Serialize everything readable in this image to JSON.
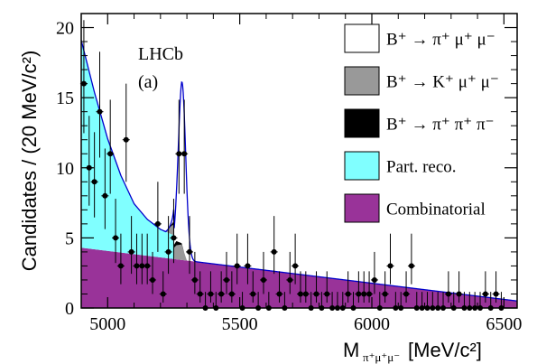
{
  "chart_data": {
    "type": "scatter",
    "ylabel": "Candidates / (20 MeV/c²)",
    "xlabel": "M",
    "xlabel_sub": "π⁺μ⁺μ⁻",
    "xlabel_unit": "[MeV/c²]",
    "annotation_experiment": "LHCb",
    "annotation_panel": "(a)",
    "xlim": [
      4900,
      6550
    ],
    "ylim": [
      0,
      21
    ],
    "x_ticks": [
      5000,
      5500,
      6000,
      6500
    ],
    "y_ticks": [
      0,
      5,
      10,
      15,
      20
    ],
    "legend_position": "top-right",
    "colors": {
      "signal": "#ffffff",
      "b_kmumu": "#999999",
      "b_pipipi": "#000000",
      "part_reco": "#80ffff",
      "combinatorial": "#993399",
      "fit": "#0000cc",
      "points": "#000000"
    },
    "legend": [
      {
        "key": "signal",
        "label": "B⁺ → π⁺ μ⁺ μ⁻"
      },
      {
        "key": "b_kmumu",
        "label": "B⁺ → K⁺ μ⁺ μ⁻"
      },
      {
        "key": "b_pipipi",
        "label": "B⁺ → π⁺ π⁺ π⁻"
      },
      {
        "key": "part_reco",
        "label": "Part. reco."
      },
      {
        "key": "combinatorial",
        "label": "Combinatorial"
      }
    ],
    "data_points": {
      "x": [
        4910,
        4930,
        4950,
        4970,
        4990,
        5010,
        5030,
        5050,
        5070,
        5090,
        5110,
        5130,
        5150,
        5170,
        5190,
        5210,
        5230,
        5250,
        5270,
        5290,
        5310,
        5330,
        5350,
        5370,
        5390,
        5410,
        5430,
        5450,
        5470,
        5490,
        5510,
        5530,
        5550,
        5570,
        5590,
        5610,
        5630,
        5650,
        5670,
        5690,
        5710,
        5730,
        5750,
        5770,
        5790,
        5810,
        5830,
        5850,
        5870,
        5890,
        5910,
        5930,
        5950,
        5970,
        5990,
        6010,
        6030,
        6050,
        6070,
        6090,
        6110,
        6130,
        6150,
        6170,
        6190,
        6210,
        6230,
        6250,
        6270,
        6290,
        6310,
        6330,
        6350,
        6370,
        6390,
        6410,
        6430,
        6450,
        6470,
        6490
      ],
      "y": [
        16,
        10,
        9,
        14,
        8,
        11,
        5,
        3,
        12,
        4,
        3,
        3,
        3,
        2,
        6,
        1,
        4,
        5,
        11,
        11,
        4,
        2,
        1,
        0,
        1,
        0,
        1,
        2,
        1,
        3,
        0,
        3,
        1,
        0,
        2,
        0,
        4,
        1,
        0,
        2,
        3,
        1,
        1,
        0,
        1,
        0,
        1,
        0,
        0,
        0,
        1,
        0,
        1,
        1,
        1,
        2,
        0,
        1,
        3,
        0,
        0,
        1,
        3,
        0,
        0,
        0,
        0,
        0,
        0,
        1,
        0,
        1,
        0,
        0,
        0,
        0,
        1,
        0,
        1,
        0
      ]
    },
    "combinatorial_curve": {
      "x": [
        4900,
        6550
      ],
      "y": [
        4.3,
        0.5
      ]
    },
    "part_reco_curve": {
      "x": [
        4900,
        4950,
        5000,
        5050,
        5100,
        5150,
        5200,
        5250
      ],
      "y": [
        14.8,
        11.2,
        8.0,
        5.5,
        3.6,
        2.6,
        2.0,
        1.7
      ]
    },
    "b_kmumu_curve": {
      "x": [
        5220,
        5240,
        5260,
        5280,
        5300
      ],
      "y": [
        0,
        0.55,
        1.0,
        1.1,
        0
      ]
    },
    "b_pipipi_curve": {
      "x": [
        5230,
        5260,
        5290
      ],
      "y": [
        0,
        0.3,
        0
      ]
    },
    "signal_peak": {
      "mean": 5282,
      "sigma": 14,
      "height": 11.6
    }
  }
}
